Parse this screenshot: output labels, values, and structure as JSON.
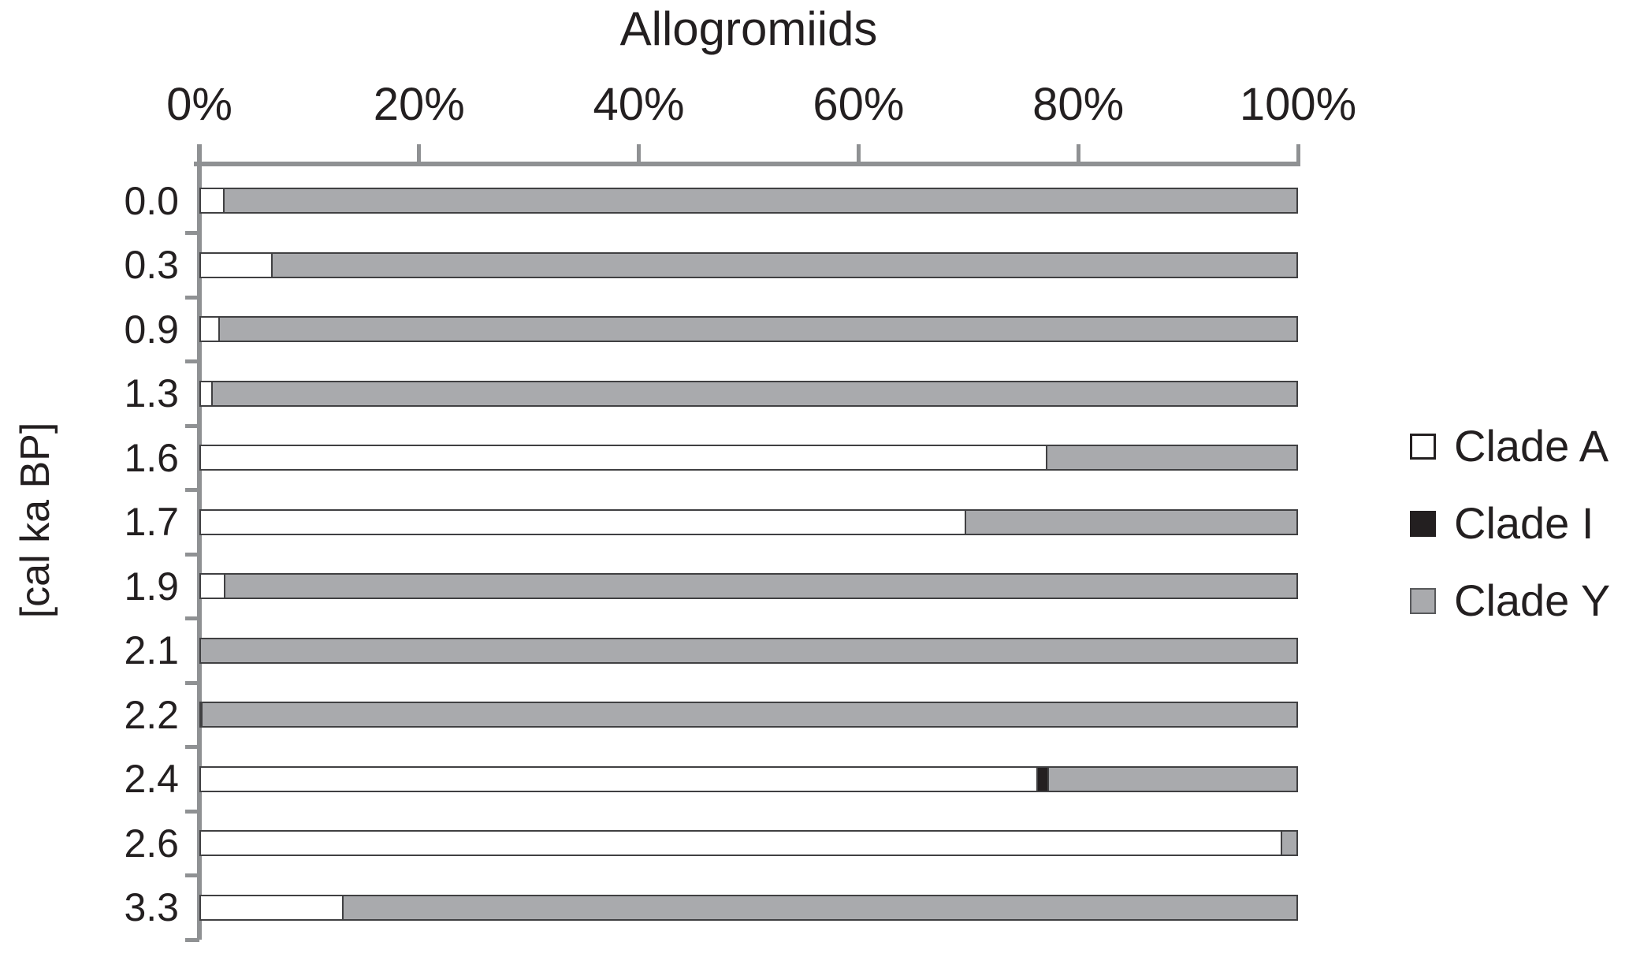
{
  "chart_data": {
    "type": "bar",
    "orientation": "horizontal",
    "stacked": true,
    "title": "Allogromiids",
    "xlabel": "",
    "ylabel": "[cal ka BP]",
    "x_ticks": [
      "0%",
      "20%",
      "40%",
      "60%",
      "80%",
      "100%"
    ],
    "x_range": [
      0,
      100
    ],
    "grid": false,
    "legend_position": "right",
    "categories": [
      "0.0",
      "0.3",
      "0.9",
      "1.3",
      "1.6",
      "1.7",
      "1.9",
      "2.1",
      "2.2",
      "2.4",
      "2.6",
      "3.3"
    ],
    "series": [
      {
        "name": "Clade A",
        "color": "#ffffff",
        "values": [
          2.3,
          6.7,
          1.9,
          1.2,
          77.2,
          69.8,
          2.4,
          0,
          0.3,
          76.3,
          98.6,
          13.1
        ]
      },
      {
        "name": "Clade I",
        "color": "#231f20",
        "values": [
          0,
          0,
          0,
          0,
          0,
          0,
          0,
          0,
          0,
          1.0,
          0,
          0
        ]
      },
      {
        "name": "Clade Y",
        "color": "#a9aaad",
        "values": [
          97.7,
          93.3,
          98.1,
          98.8,
          22.8,
          30.2,
          97.6,
          100,
          99.7,
          22.7,
          1.4,
          86.9
        ]
      }
    ],
    "legend": [
      {
        "label": "Clade A",
        "swatch": "white-square"
      },
      {
        "label": "Clade I",
        "swatch": "black-square"
      },
      {
        "label": "Clade Y",
        "swatch": "gray-square"
      }
    ]
  },
  "colors": {
    "bar_outline": "#404042",
    "axis": "#8f9193",
    "text": "#231f20",
    "clade_a_fill": "#ffffff",
    "clade_i_fill": "#231f20",
    "clade_y_fill": "#a9aaad"
  }
}
